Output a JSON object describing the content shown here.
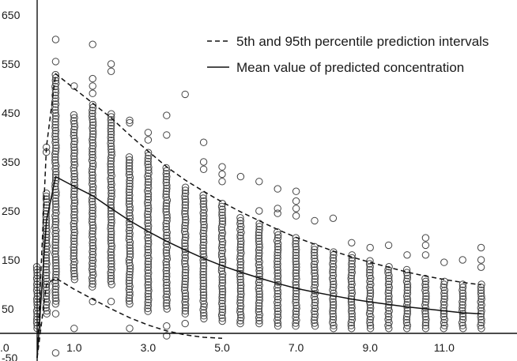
{
  "chart_data": {
    "type": "scatter",
    "title": "",
    "xlabel": "",
    "ylabel": "",
    "xlim": [
      0,
      12.4
    ],
    "ylim": [
      -50,
      700
    ],
    "x_ticks": [
      0,
      1.0,
      3.0,
      5.0,
      7.0,
      9.0,
      11.0
    ],
    "x_tick_labels": [
      ".0",
      "1.0",
      "3.0",
      "5.0",
      "7.0",
      "9.0",
      "11.0"
    ],
    "y_ticks": [
      -50,
      50,
      150,
      250,
      350,
      450,
      550,
      650
    ],
    "y_tick_labels": [
      "-50",
      "50",
      "150",
      "250",
      "350",
      "450",
      "550",
      "650"
    ],
    "grid": false,
    "legend_position": "top-right",
    "legend": [
      {
        "label": "5th and 95th percentile prediction intervals",
        "style": "dashed"
      },
      {
        "label": "Mean value of predicted concentration",
        "style": "solid"
      }
    ],
    "series": [
      {
        "kind": "observed",
        "marker": "open-circle",
        "columns": [
          {
            "x": 0.0,
            "ymin": 10,
            "ymax": 140,
            "outliers": []
          },
          {
            "x": 0.25,
            "ymin": 40,
            "ymax": 290,
            "outliers": [
              370,
              380,
              100
            ]
          },
          {
            "x": 0.5,
            "ymin": 60,
            "ymax": 530,
            "outliers": [
              600,
              555,
              40,
              -40
            ]
          },
          {
            "x": 1.0,
            "ymin": 110,
            "ymax": 450,
            "outliers": [
              505,
              10
            ]
          },
          {
            "x": 1.5,
            "ymin": 95,
            "ymax": 470,
            "outliers": [
              590,
              520,
              505,
              490,
              65
            ]
          },
          {
            "x": 2.0,
            "ymin": 100,
            "ymax": 450,
            "outliers": [
              550,
              535,
              65
            ]
          },
          {
            "x": 2.5,
            "ymin": 60,
            "ymax": 360,
            "outliers": [
              435,
              430,
              10
            ]
          },
          {
            "x": 3.0,
            "ymin": 45,
            "ymax": 370,
            "outliers": [
              410,
              395
            ]
          },
          {
            "x": 3.5,
            "ymin": 50,
            "ymax": 340,
            "outliers": [
              445,
              405,
              15,
              -5
            ]
          },
          {
            "x": 4.0,
            "ymin": 40,
            "ymax": 300,
            "outliers": [
              488,
              20
            ]
          },
          {
            "x": 4.5,
            "ymin": 30,
            "ymax": 285,
            "outliers": [
              390,
              350,
              335
            ]
          },
          {
            "x": 5.0,
            "ymin": 25,
            "ymax": 270,
            "outliers": [
              340,
              325,
              310
            ]
          },
          {
            "x": 5.5,
            "ymin": 20,
            "ymax": 240,
            "outliers": [
              320
            ]
          },
          {
            "x": 6.0,
            "ymin": 20,
            "ymax": 225,
            "outliers": [
              310,
              250
            ]
          },
          {
            "x": 6.5,
            "ymin": 15,
            "ymax": 210,
            "outliers": [
              295,
              255,
              245
            ]
          },
          {
            "x": 7.0,
            "ymin": 15,
            "ymax": 195,
            "outliers": [
              290,
              270,
              255,
              240
            ]
          },
          {
            "x": 7.5,
            "ymin": 15,
            "ymax": 180,
            "outliers": [
              230
            ]
          },
          {
            "x": 8.0,
            "ymin": 10,
            "ymax": 170,
            "outliers": [
              235
            ]
          },
          {
            "x": 8.5,
            "ymin": 10,
            "ymax": 165,
            "outliers": [
              185
            ]
          },
          {
            "x": 9.0,
            "ymin": 10,
            "ymax": 150,
            "outliers": [
              175
            ]
          },
          {
            "x": 9.5,
            "ymin": 10,
            "ymax": 140,
            "outliers": [
              180
            ]
          },
          {
            "x": 10.0,
            "ymin": 10,
            "ymax": 130,
            "outliers": [
              160
            ]
          },
          {
            "x": 10.5,
            "ymin": 10,
            "ymax": 115,
            "outliers": [
              195,
              180,
              160
            ]
          },
          {
            "x": 11.0,
            "ymin": 10,
            "ymax": 110,
            "outliers": [
              145
            ]
          },
          {
            "x": 11.5,
            "ymin": 10,
            "ymax": 105,
            "outliers": [
              150
            ]
          },
          {
            "x": 12.0,
            "ymin": 10,
            "ymax": 100,
            "outliers": [
              175,
              150,
              135
            ]
          }
        ]
      },
      {
        "kind": "mean",
        "style": "solid",
        "x": [
          0,
          0.25,
          0.5,
          1,
          1.5,
          2,
          2.5,
          3,
          3.5,
          4,
          4.5,
          5,
          5.5,
          6,
          6.5,
          7,
          7.5,
          8,
          8.5,
          9,
          9.5,
          10,
          10.5,
          11,
          11.5,
          12
        ],
        "y": [
          -50,
          230,
          320,
          300,
          281,
          255,
          230,
          208,
          188,
          170,
          153,
          138,
          125,
          113,
          102,
          92,
          84,
          77,
          70,
          64,
          59,
          54,
          50,
          46,
          42,
          40
        ]
      },
      {
        "kind": "upper-95",
        "style": "dashed",
        "x": [
          0,
          0.25,
          0.5,
          1,
          1.5,
          2,
          2.5,
          3,
          3.5,
          4,
          4.5,
          5,
          5.5,
          6,
          6.5,
          7,
          7.5,
          8,
          8.5,
          9,
          9.5,
          10,
          10.5,
          11,
          11.5,
          12
        ],
        "y": [
          -50,
          380,
          530,
          500,
          470,
          440,
          405,
          372,
          340,
          313,
          290,
          268,
          248,
          230,
          212,
          196,
          182,
          168,
          156,
          145,
          135,
          125,
          117,
          110,
          104,
          99
        ]
      },
      {
        "kind": "lower-5",
        "style": "dashed",
        "x": [
          0,
          0.25,
          0.5,
          1,
          1.5,
          2,
          2.5,
          3,
          3.5,
          4,
          4.5,
          5
        ],
        "y": [
          -50,
          100,
          113,
          90,
          70,
          50,
          32,
          17,
          5,
          -3,
          -8,
          -10
        ]
      }
    ]
  }
}
